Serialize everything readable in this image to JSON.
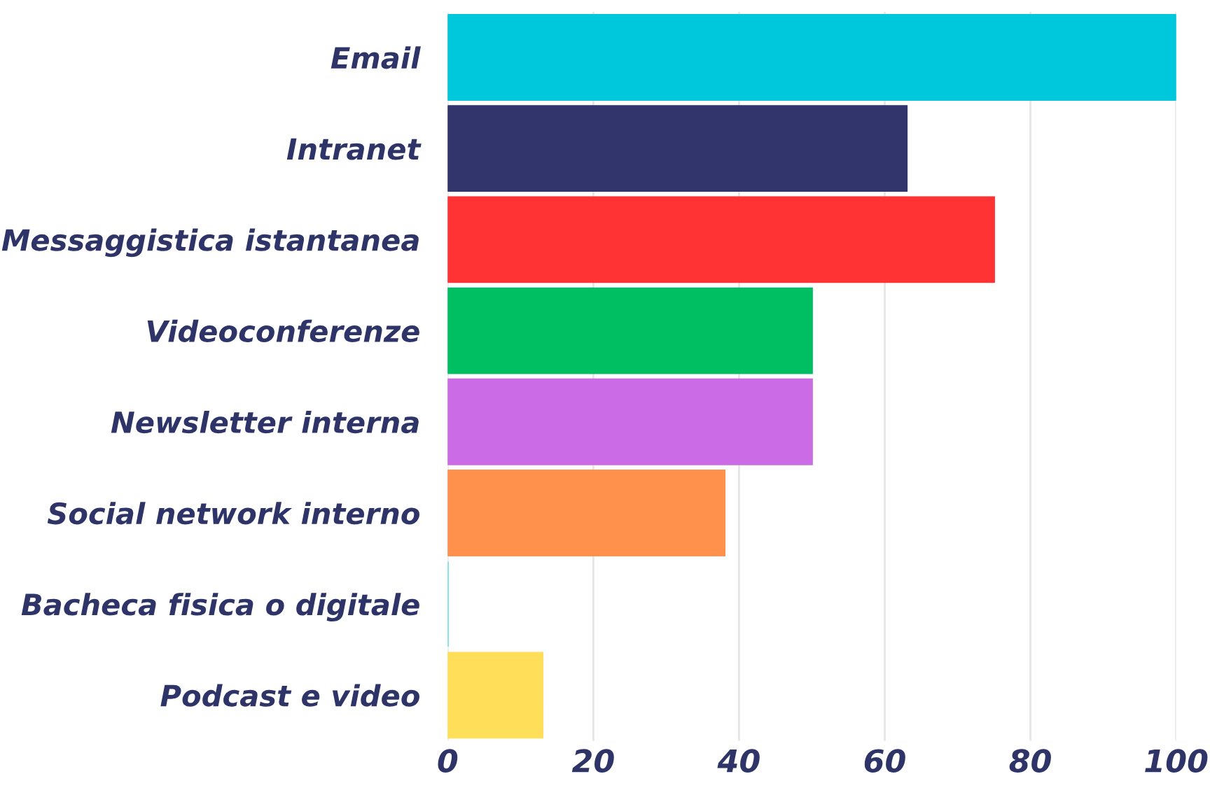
{
  "chart_data": {
    "type": "bar",
    "orientation": "horizontal",
    "categories": [
      "Email",
      "Intranet",
      "Messaggistica istantanea",
      "Videoconferenze",
      "Newsletter interna",
      "Social network interno",
      "Bacheca fisica o digitale",
      "Podcast e video"
    ],
    "values": [
      100,
      63,
      75,
      50,
      50,
      38,
      0,
      13
    ],
    "colors": [
      "#00c8dc",
      "#31356b",
      "#ff3334",
      "#00bf63",
      "#cb6ce6",
      "#ff914d",
      "#5ce1e6",
      "#ffde59"
    ],
    "xlim": [
      0,
      100
    ],
    "xticks": [
      0,
      20,
      40,
      60,
      80,
      100
    ],
    "grid": "x"
  }
}
